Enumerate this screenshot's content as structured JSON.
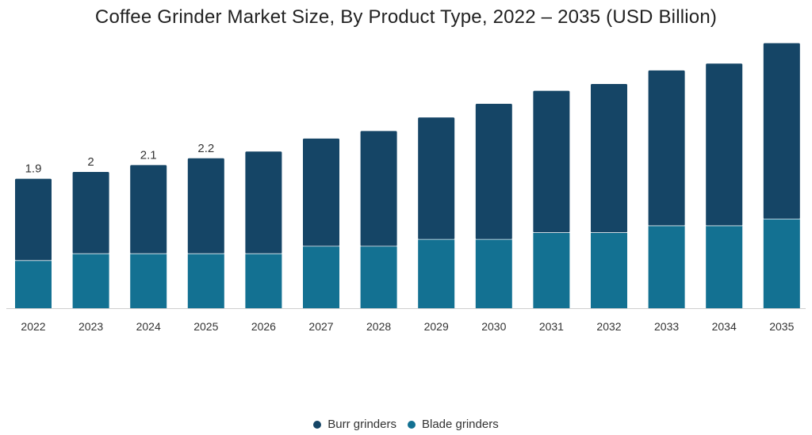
{
  "chart_data": {
    "type": "bar",
    "stacked": true,
    "title": "Coffee Grinder Market Size, By Product Type, 2022 – 2035 (USD Billion)",
    "categories": [
      "2022",
      "2023",
      "2024",
      "2025",
      "2026",
      "2027",
      "2028",
      "2029",
      "2030",
      "2031",
      "2032",
      "2033",
      "2034",
      "2035"
    ],
    "series": [
      {
        "name": "Blade grinders",
        "color": "#137192",
        "values": [
          0.7,
          0.8,
          0.8,
          0.8,
          0.8,
          0.91,
          0.91,
          1.01,
          1.01,
          1.11,
          1.11,
          1.21,
          1.21,
          1.31
        ]
      },
      {
        "name": "Burr grinders",
        "color": "#154566",
        "values": [
          1.2,
          1.2,
          1.3,
          1.4,
          1.5,
          1.58,
          1.69,
          1.79,
          1.99,
          2.08,
          2.18,
          2.28,
          2.38,
          2.58
        ]
      }
    ],
    "data_labels": [
      "1.9",
      "2",
      "2.1",
      "2.2",
      "",
      "",
      "",
      "",
      "",
      "",
      "",
      "",
      "",
      ""
    ],
    "ylim": [
      0,
      4.0
    ],
    "grid": false,
    "legend_position": "bottom",
    "legend_order": [
      "Burr grinders",
      "Blade grinders"
    ]
  }
}
